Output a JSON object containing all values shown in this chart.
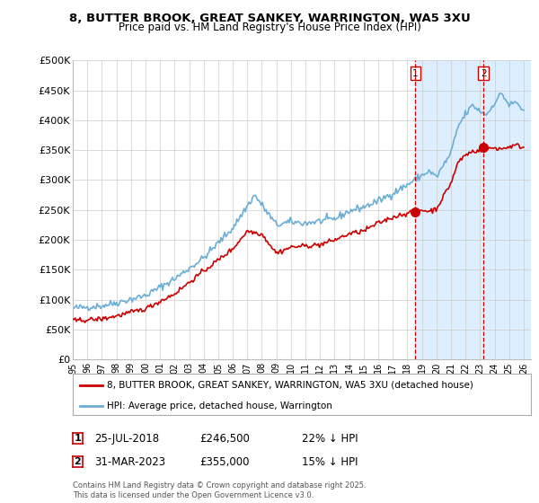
{
  "title1": "8, BUTTER BROOK, GREAT SANKEY, WARRINGTON, WA5 3XU",
  "title2": "Price paid vs. HM Land Registry's House Price Index (HPI)",
  "ylim": [
    0,
    500000
  ],
  "yticks": [
    0,
    50000,
    100000,
    150000,
    200000,
    250000,
    300000,
    350000,
    400000,
    450000,
    500000
  ],
  "ytick_labels": [
    "£0",
    "£50K",
    "£100K",
    "£150K",
    "£200K",
    "£250K",
    "£300K",
    "£350K",
    "£400K",
    "£450K",
    "£500K"
  ],
  "hpi_color": "#6baed6",
  "price_color": "#cc0000",
  "shade_color": "#ddeeff",
  "annotation1_label": "1",
  "annotation1_date": "25-JUL-2018",
  "annotation1_price": "£246,500",
  "annotation1_hpi": "22% ↓ HPI",
  "annotation1_val": 246500,
  "annotation2_label": "2",
  "annotation2_date": "31-MAR-2023",
  "annotation2_price": "£355,000",
  "annotation2_hpi": "15% ↓ HPI",
  "annotation2_val": 355000,
  "legend1_label": "8, BUTTER BROOK, GREAT SANKEY, WARRINGTON, WA5 3XU (detached house)",
  "legend2_label": "HPI: Average price, detached house, Warrington",
  "footer": "Contains HM Land Registry data © Crown copyright and database right 2025.\nThis data is licensed under the Open Government Licence v3.0.",
  "bg_color": "#ffffff",
  "grid_color": "#cccccc",
  "vline1_x": 2018.56,
  "vline2_x": 2023.25,
  "xmin": 1995,
  "xmax": 2026.5
}
